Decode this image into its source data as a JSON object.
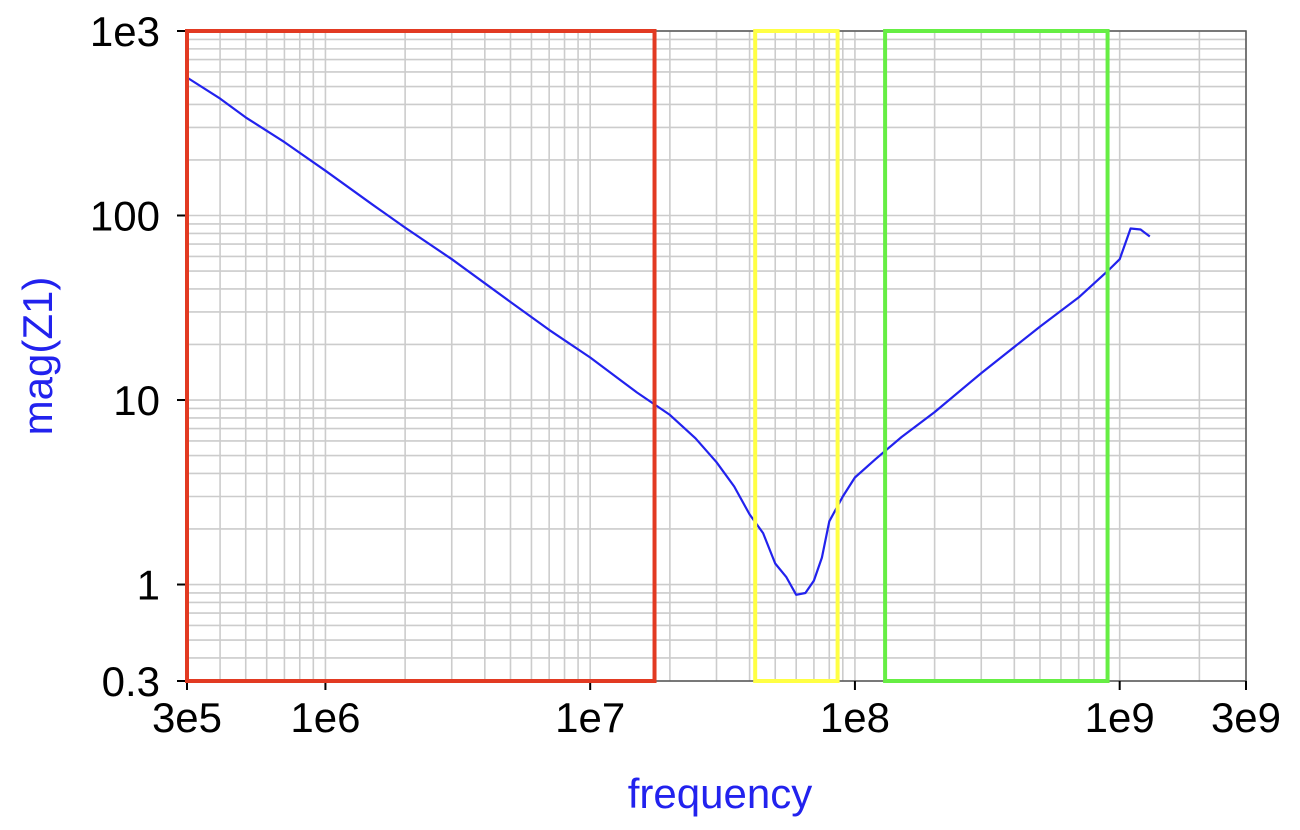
{
  "chart_data": {
    "type": "line",
    "title": "",
    "xlabel": "frequency",
    "ylabel": "mag(Z1)",
    "x_scale": "log",
    "y_scale": "log",
    "xlim": [
      300000,
      3000000000
    ],
    "ylim": [
      0.3,
      1000
    ],
    "grid": true,
    "x_ticks": [
      {
        "value": 300000,
        "label": "3e5"
      },
      {
        "value": 1000000,
        "label": "1e6"
      },
      {
        "value": 10000000,
        "label": "1e7"
      },
      {
        "value": 100000000,
        "label": "1e8"
      },
      {
        "value": 1000000000,
        "label": "1e9"
      },
      {
        "value": 3000000000,
        "label": "3e9"
      }
    ],
    "y_ticks": [
      {
        "value": 0.3,
        "label": "0.3"
      },
      {
        "value": 1,
        "label": "1"
      },
      {
        "value": 10,
        "label": "10"
      },
      {
        "value": 100,
        "label": "100"
      },
      {
        "value": 1000,
        "label": "1e3"
      }
    ],
    "series": [
      {
        "color": "#2222ee",
        "x": [
          300000,
          400000,
          500000,
          700000,
          1000000,
          1500000,
          2000000,
          3000000,
          5000000,
          7000000,
          10000000,
          15000000,
          20000000,
          25000000,
          30000000,
          35000000,
          40000000,
          45000000,
          50000000,
          55000000,
          60000000,
          65000000,
          70000000,
          75000000,
          80000000,
          90000000,
          100000000,
          120000000,
          150000000,
          200000000,
          300000000,
          500000000,
          700000000,
          900000000,
          1000000000,
          1100000000,
          1200000000,
          1300000000
        ],
        "y": [
          560,
          430,
          340,
          250,
          175,
          115,
          86,
          58,
          34,
          24,
          17,
          11,
          8.3,
          6.2,
          4.6,
          3.4,
          2.4,
          1.9,
          1.3,
          1.1,
          0.88,
          0.9,
          1.05,
          1.4,
          2.2,
          3.0,
          3.8,
          4.8,
          6.3,
          8.6,
          14,
          25,
          36,
          50,
          58,
          85,
          84,
          77
        ]
      }
    ],
    "regions": [
      {
        "color": "#e23a22",
        "x_range": [
          300000,
          17500000
        ],
        "y_range": [
          0.3,
          1000
        ]
      },
      {
        "color": "#ffff44",
        "x_range": [
          42000000,
          86000000
        ],
        "y_range": [
          0.3,
          1000
        ]
      },
      {
        "color": "#66ee44",
        "x_range": [
          130000000,
          900000000
        ],
        "y_range": [
          0.3,
          1000
        ]
      }
    ]
  }
}
